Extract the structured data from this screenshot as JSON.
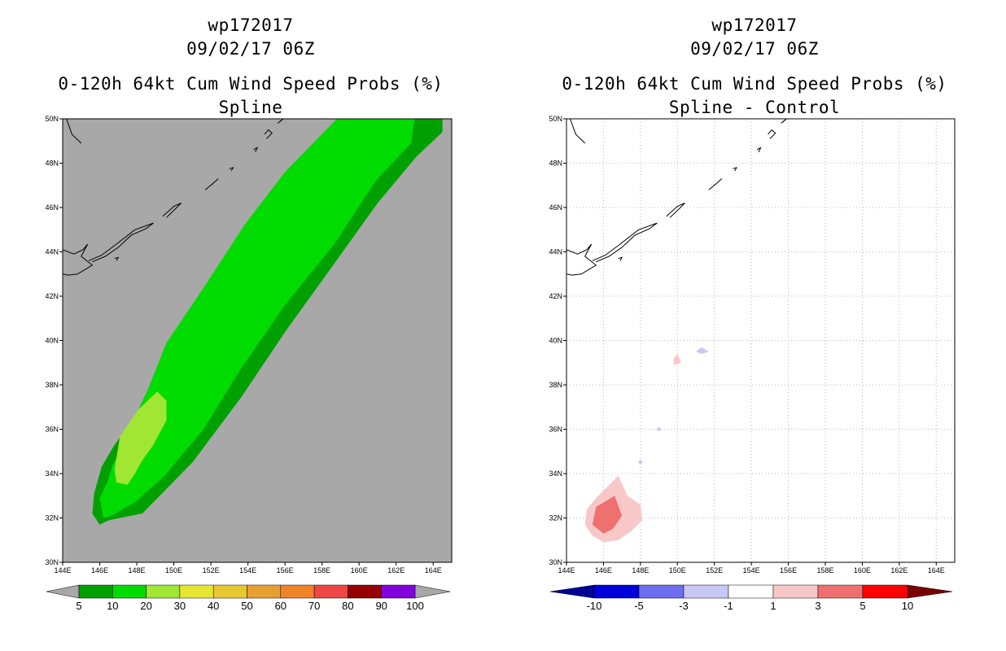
{
  "chart_data": [
    {
      "type": "heatmap",
      "title_lines": [
        "wp172017",
        "09/02/17 06Z",
        "0-120h 64kt Cum Wind Speed Probs (%)",
        "Spline"
      ],
      "x_ticks": [
        "144E",
        "146E",
        "148E",
        "150E",
        "152E",
        "154E",
        "156E",
        "158E",
        "160E",
        "162E",
        "164E"
      ],
      "y_ticks": [
        "30N",
        "32N",
        "34N",
        "36N",
        "38N",
        "40N",
        "42N",
        "44N",
        "46N",
        "48N",
        "50N"
      ],
      "xlim": [
        144,
        165
      ],
      "ylim": [
        30,
        50
      ],
      "background": "#a8a8a8",
      "gridlines": false,
      "colorbar": {
        "labels": [
          "5",
          "10",
          "20",
          "30",
          "40",
          "50",
          "60",
          "70",
          "80",
          "90",
          "100"
        ],
        "colors": [
          "#00a000",
          "#00dc00",
          "#a0e632",
          "#e6e632",
          "#e6c832",
          "#e6a032",
          "#f08228",
          "#f04646",
          "#960000",
          "#8200dc"
        ],
        "end_color": "#a8a8a8"
      },
      "contours": [
        {
          "level": "5-10",
          "color": "#00a000",
          "points": [
            [
              149.4,
              38.9
            ],
            [
              152.0,
              42.2
            ],
            [
              154.3,
              45.0
            ],
            [
              156.8,
              47.6
            ],
            [
              159.1,
              49.5
            ],
            [
              160.1,
              50.0
            ],
            [
              164.5,
              50.0
            ],
            [
              164.5,
              49.4
            ],
            [
              163.1,
              48.3
            ],
            [
              161.0,
              46.2
            ],
            [
              158.6,
              43.4
            ],
            [
              156.1,
              40.5
            ],
            [
              153.6,
              37.4
            ],
            [
              151.0,
              34.5
            ],
            [
              148.3,
              32.2
            ],
            [
              146.5,
              31.9
            ],
            [
              146.0,
              31.7
            ],
            [
              145.6,
              32.2
            ],
            [
              145.7,
              33.1
            ],
            [
              146.1,
              34.3
            ],
            [
              146.8,
              35.3
            ],
            [
              147.7,
              36.3
            ],
            [
              148.6,
              37.6
            ]
          ]
        },
        {
          "level": "10-20",
          "color": "#00dc00",
          "points": [
            [
              149.6,
              39.9
            ],
            [
              151.7,
              42.5
            ],
            [
              153.8,
              45.2
            ],
            [
              156.0,
              47.6
            ],
            [
              158.1,
              49.4
            ],
            [
              158.8,
              50.0
            ],
            [
              163.0,
              50.0
            ],
            [
              162.8,
              48.9
            ],
            [
              160.9,
              47.2
            ],
            [
              158.7,
              44.4
            ],
            [
              156.0,
              41.6
            ],
            [
              153.6,
              38.7
            ],
            [
              151.6,
              36.0
            ],
            [
              149.5,
              33.9
            ],
            [
              147.9,
              32.7
            ],
            [
              146.6,
              32.1
            ],
            [
              146.2,
              32.0
            ],
            [
              146.0,
              32.9
            ],
            [
              146.4,
              33.6
            ],
            [
              146.7,
              34.4
            ],
            [
              147.2,
              35.2
            ],
            [
              147.7,
              36.2
            ],
            [
              148.6,
              37.8
            ]
          ]
        },
        {
          "level": "20-30",
          "color": "#a0e632",
          "points": [
            [
              147.1,
              35.7
            ],
            [
              148.1,
              36.9
            ],
            [
              149.1,
              37.7
            ],
            [
              149.6,
              37.3
            ],
            [
              149.6,
              36.4
            ],
            [
              148.9,
              35.3
            ],
            [
              148.3,
              34.6
            ],
            [
              147.9,
              34.0
            ],
            [
              147.5,
              33.5
            ],
            [
              146.9,
              33.6
            ],
            [
              146.8,
              34.2
            ]
          ]
        }
      ],
      "coastline_label": "map coastlines"
    },
    {
      "type": "heatmap",
      "title_lines": [
        "wp172017",
        "09/02/17 06Z",
        "0-120h 64kt Cum Wind Speed Probs (%)",
        "Spline - Control"
      ],
      "x_ticks": [
        "144E",
        "146E",
        "148E",
        "150E",
        "152E",
        "154E",
        "156E",
        "158E",
        "160E",
        "162E",
        "164E"
      ],
      "y_ticks": [
        "30N",
        "32N",
        "34N",
        "36N",
        "38N",
        "40N",
        "42N",
        "44N",
        "46N",
        "48N",
        "50N"
      ],
      "xlim": [
        144,
        165
      ],
      "ylim": [
        30,
        50
      ],
      "background": "#ffffff",
      "gridlines": true,
      "colorbar": {
        "labels": [
          "-10",
          "-5",
          "-3",
          "-1",
          "1",
          "3",
          "5",
          "10"
        ],
        "colors": [
          "#0000dc",
          "#6e6ef0",
          "#c8c8f8",
          "#ffffff",
          "#f8c8c8",
          "#f07070",
          "#ff0000"
        ],
        "left_end_color": "#000096",
        "right_end_color": "#780000"
      },
      "contours": [
        {
          "level": "1-3",
          "color": "#f8c8c8",
          "points": [
            [
              146.8,
              33.9
            ],
            [
              147.3,
              33.0
            ],
            [
              148.0,
              32.6
            ],
            [
              148.1,
              31.9
            ],
            [
              147.5,
              31.4
            ],
            [
              146.8,
              31.0
            ],
            [
              146.0,
              30.9
            ],
            [
              145.4,
              31.2
            ],
            [
              145.0,
              31.7
            ],
            [
              145.1,
              32.4
            ],
            [
              145.6,
              32.9
            ]
          ]
        },
        {
          "level": "3-5",
          "color": "#f07070",
          "points": [
            [
              146.6,
              33.0
            ],
            [
              147.0,
              32.1
            ],
            [
              146.5,
              31.5
            ],
            [
              146.0,
              31.3
            ],
            [
              145.4,
              31.7
            ],
            [
              145.6,
              32.5
            ],
            [
              146.2,
              32.8
            ]
          ]
        },
        {
          "level": "1-3",
          "color": "#f8c8c8",
          "points": [
            [
              150.0,
              39.4
            ],
            [
              150.2,
              39.0
            ],
            [
              149.8,
              38.9
            ],
            [
              149.8,
              39.2
            ]
          ]
        },
        {
          "level": "-3--1",
          "color": "#c8c8f8",
          "points": [
            [
              151.3,
              39.7
            ],
            [
              151.7,
              39.5
            ],
            [
              151.3,
              39.4
            ],
            [
              151.0,
              39.5
            ]
          ]
        },
        {
          "level": "-3--1",
          "color": "#c8c8f8",
          "points": [
            [
              149.0,
              36.1
            ],
            [
              149.15,
              36.0
            ],
            [
              149.0,
              35.9
            ],
            [
              148.85,
              36.0
            ]
          ]
        },
        {
          "level": "-3--1",
          "color": "#c8c8f8",
          "points": [
            [
              148.0,
              34.65
            ],
            [
              148.12,
              34.5
            ],
            [
              148.0,
              34.4
            ],
            [
              147.88,
              34.5
            ]
          ]
        }
      ],
      "coastline_label": "map coastlines"
    }
  ]
}
